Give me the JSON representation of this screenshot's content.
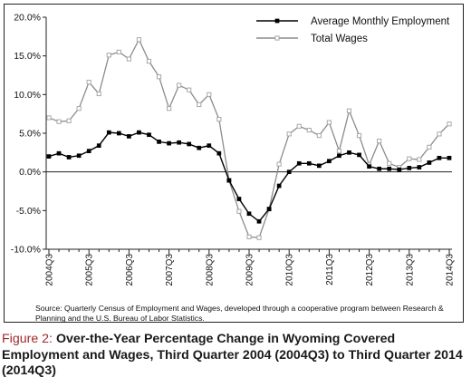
{
  "chart_data": {
    "type": "line",
    "x": [
      "2004Q3",
      "2004Q4",
      "2005Q1",
      "2005Q2",
      "2005Q3",
      "2005Q4",
      "2006Q1",
      "2006Q2",
      "2006Q3",
      "2006Q4",
      "2007Q1",
      "2007Q2",
      "2007Q3",
      "2007Q4",
      "2008Q1",
      "2008Q2",
      "2008Q3",
      "2008Q4",
      "2009Q1",
      "2009Q2",
      "2009Q3",
      "2009Q4",
      "2010Q1",
      "2010Q2",
      "2010Q3",
      "2010Q4",
      "2011Q1",
      "2011Q2",
      "2011Q3",
      "2011Q4",
      "2012Q1",
      "2012Q2",
      "2012Q3",
      "2012Q4",
      "2013Q1",
      "2013Q2",
      "2013Q3",
      "2013Q4",
      "2014Q1",
      "2014Q2",
      "2014Q3"
    ],
    "series": [
      {
        "name": "Average Monthly Employment",
        "color": "#000000",
        "marker": "filled-square",
        "values": [
          2.0,
          2.4,
          1.9,
          2.1,
          2.7,
          3.4,
          5.1,
          5.0,
          4.6,
          5.1,
          4.8,
          3.9,
          3.7,
          3.8,
          3.6,
          3.1,
          3.4,
          2.4,
          -1.1,
          -3.5,
          -5.4,
          -6.4,
          -4.8,
          -1.8,
          0.0,
          1.1,
          1.1,
          0.8,
          1.4,
          2.1,
          2.5,
          2.2,
          0.7,
          0.4,
          0.4,
          0.3,
          0.5,
          0.6,
          1.2,
          1.8,
          1.8
        ]
      },
      {
        "name": "Total Wages",
        "color": "#8c8c8c",
        "marker": "hollow-square",
        "values": [
          7.0,
          6.5,
          6.6,
          8.2,
          11.6,
          10.1,
          15.1,
          15.5,
          14.6,
          17.1,
          14.3,
          12.3,
          8.2,
          11.2,
          10.6,
          8.7,
          10.0,
          6.8,
          -1.1,
          -5.1,
          -8.4,
          -8.5,
          -4.8,
          1.0,
          4.9,
          5.9,
          5.4,
          4.7,
          6.4,
          2.7,
          7.9,
          4.7,
          0.9,
          4.0,
          1.1,
          0.6,
          1.7,
          1.6,
          3.2,
          4.9,
          6.2
        ]
      }
    ],
    "y_tick_labels": [
      "20.0%",
      "15.0%",
      "10.0%",
      "5.0%",
      "0.0%",
      "-5.0%",
      "-10.0%"
    ],
    "x_tick_labels": [
      "2004Q3",
      "2005Q3",
      "2006Q3",
      "2007Q3",
      "2008Q3",
      "2009Q3",
      "2010Q3",
      "2011Q3",
      "2012Q3",
      "2013Q3",
      "2014Q3"
    ],
    "ylim": [
      -10,
      20
    ],
    "grid": false,
    "legend_position": "top-right",
    "source": "Source: Quarterly Census of Employment and Wages, developed through a cooperative program between Research & Planning and the U.S. Bureau of Labor Statistics."
  },
  "caption": {
    "label": "Figure 2:",
    "text": "Over-the-Year Percentage Change in Wyoming Covered Employment and Wages, Third Quarter 2004 (2004Q3) to Third Quarter 2014 (2014Q3)"
  }
}
